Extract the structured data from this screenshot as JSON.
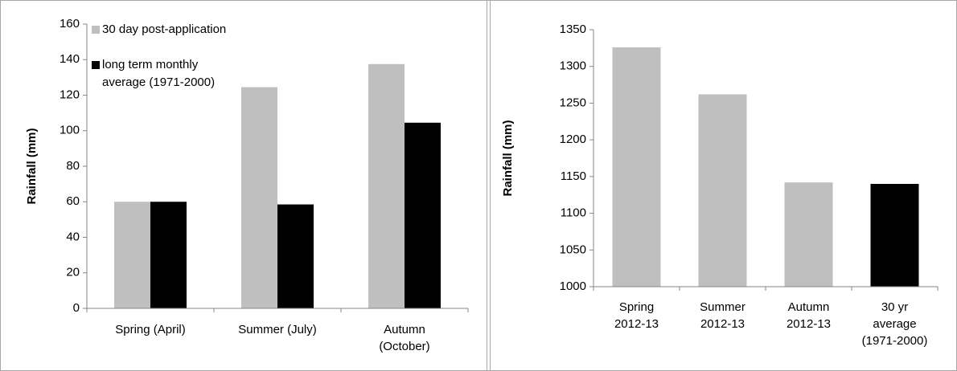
{
  "chart_data": [
    {
      "type": "bar",
      "y_label": "Rainfall (mm)",
      "categories": [
        [
          "Spring (April)"
        ],
        [
          "Summer (July)"
        ],
        [
          "Autumn",
          "(October)"
        ]
      ],
      "series": [
        {
          "name": "30 day post-application",
          "color": "#bfbfbf",
          "values": [
            60,
            124.5,
            137.5
          ]
        },
        {
          "name": "long term monthly average (1971-2000)",
          "color": "#000000",
          "values": [
            60,
            58.5,
            104.5
          ]
        }
      ],
      "ylim": [
        0,
        160
      ],
      "yticks": [
        0,
        20,
        40,
        60,
        80,
        100,
        120,
        140,
        160
      ],
      "grid": false,
      "legend": "upper left"
    },
    {
      "type": "bar",
      "y_label": "Rainfall (mm)",
      "categories": [
        [
          "Spring",
          "2012-13"
        ],
        [
          "Summer",
          "2012-13"
        ],
        [
          "Autumn",
          "2012-13"
        ],
        [
          "30 yr",
          "average",
          "(1971-2000)"
        ]
      ],
      "values": [
        1326,
        1262,
        1142,
        1140
      ],
      "colors": [
        "#bfbfbf",
        "#bfbfbf",
        "#bfbfbf",
        "#000000"
      ],
      "ylim": [
        1000,
        1350
      ],
      "yticks": [
        1000,
        1050,
        1100,
        1150,
        1200,
        1250,
        1300,
        1350
      ],
      "grid": false
    }
  ]
}
